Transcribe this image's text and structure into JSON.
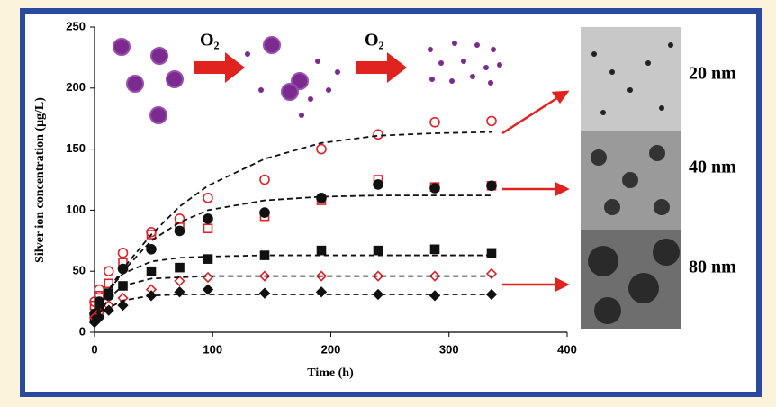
{
  "chart_data": {
    "type": "scatter",
    "x_label": "Time (h)",
    "y_label": "Silver ion concentration (μg/L)",
    "xlim": [
      0,
      400
    ],
    "xticks": [
      0,
      100,
      200,
      300,
      400
    ],
    "ylim": [
      0,
      250
    ],
    "yticks": [
      0,
      50,
      100,
      150,
      200,
      250
    ],
    "x": [
      0,
      4,
      12,
      24,
      48,
      72,
      96,
      144,
      192,
      240,
      288,
      336
    ],
    "series": [
      {
        "mode": "markers",
        "marker": "circle",
        "filled": false,
        "color": "#d9252b",
        "values": [
          25,
          35,
          50,
          65,
          82,
          93,
          110,
          125,
          150,
          162,
          172,
          173
        ]
      },
      {
        "mode": "markers",
        "marker": "square",
        "filled": false,
        "color": "#d9252b",
        "values": [
          22,
          30,
          40,
          57,
          80,
          86,
          85,
          95,
          108,
          125,
          119,
          120
        ]
      },
      {
        "mode": "markers",
        "marker": "circle",
        "filled": true,
        "color": "#111111",
        "values": [
          15,
          25,
          30,
          52,
          68,
          83,
          93,
          98,
          110,
          121,
          118,
          120
        ]
      },
      {
        "mode": "markers",
        "marker": "square",
        "filled": true,
        "color": "#111111",
        "values": [
          12,
          20,
          32,
          38,
          50,
          53,
          60,
          63,
          67,
          67,
          68,
          65
        ]
      },
      {
        "mode": "markers",
        "marker": "diamond",
        "filled": false,
        "color": "#d9252b",
        "values": [
          12,
          16,
          22,
          28,
          35,
          42,
          45,
          46,
          46,
          46,
          46,
          48
        ]
      },
      {
        "mode": "markers",
        "marker": "diamond",
        "filled": true,
        "color": "#111111",
        "values": [
          8,
          12,
          18,
          22,
          30,
          33,
          35,
          32,
          33,
          31,
          30,
          31
        ]
      },
      {
        "mode": "line",
        "dashed": true,
        "color": "#111111",
        "values": [
          10,
          22,
          35,
          52,
          80,
          103,
          120,
          142,
          155,
          161,
          163,
          164
        ]
      },
      {
        "mode": "line",
        "dashed": true,
        "color": "#111111",
        "values": [
          10,
          20,
          33,
          50,
          75,
          90,
          100,
          108,
          111,
          112,
          112,
          112
        ]
      },
      {
        "mode": "line",
        "dashed": true,
        "color": "#111111",
        "values": [
          8,
          18,
          35,
          48,
          58,
          61,
          62,
          63,
          63,
          63,
          63,
          63
        ]
      },
      {
        "mode": "line",
        "dashed": true,
        "color": "#111111",
        "values": [
          8,
          15,
          28,
          38,
          44,
          45,
          46,
          46,
          46,
          46,
          46,
          46
        ]
      },
      {
        "mode": "line",
        "dashed": true,
        "color": "#111111",
        "values": [
          5,
          10,
          20,
          26,
          30,
          31,
          31,
          31,
          31,
          31,
          31,
          31
        ]
      }
    ],
    "annotations": [
      "O₂",
      "O₂"
    ],
    "image_labels": [
      "20 nm",
      "40 nm",
      "80 nm"
    ]
  }
}
